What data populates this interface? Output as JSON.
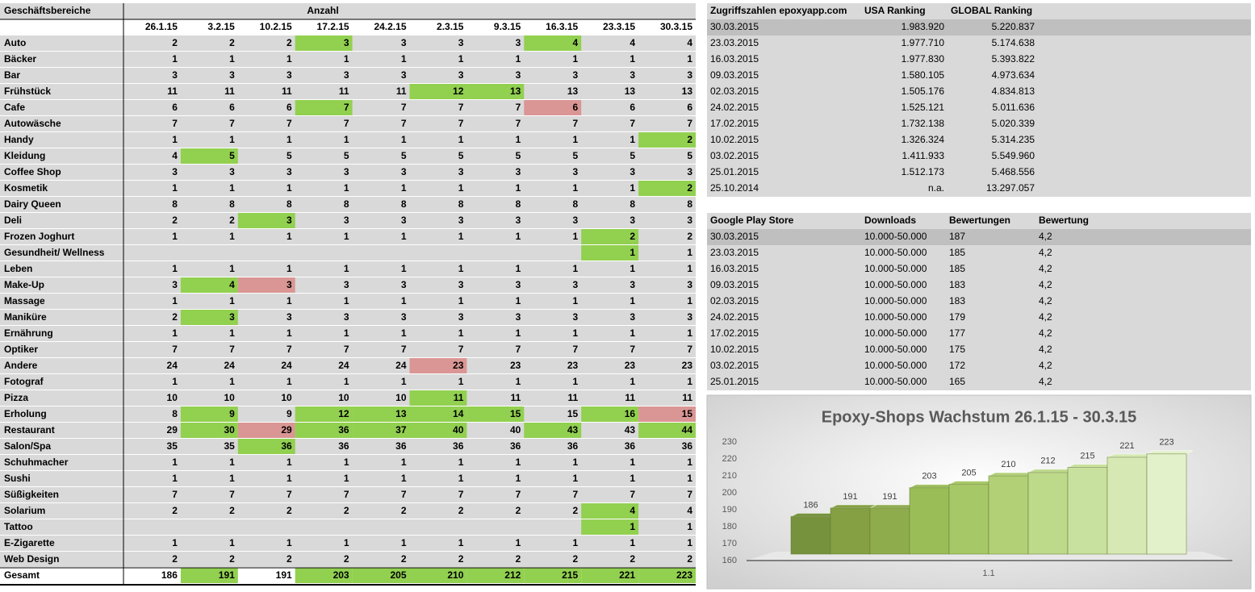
{
  "table": {
    "headers": [
      "Geschäftsbereiche",
      "Anzahl"
    ],
    "dates": [
      "26.1.15",
      "3.2.15",
      "10.2.15",
      "17.2.15",
      "24.2.15",
      "2.3.15",
      "9.3.15",
      "16.3.15",
      "23.3.15",
      "30.3.15"
    ],
    "rows": [
      {
        "name": "Auto",
        "values": [
          2,
          2,
          2,
          3,
          3,
          3,
          3,
          4,
          4,
          4
        ],
        "fills": [
          null,
          null,
          null,
          "#92d050",
          null,
          null,
          null,
          "#92d050",
          null,
          null
        ]
      },
      {
        "name": "Bäcker",
        "values": [
          1,
          1,
          1,
          1,
          1,
          1,
          1,
          1,
          1,
          1
        ],
        "fills": [
          null,
          null,
          null,
          null,
          null,
          null,
          null,
          null,
          null,
          null
        ]
      },
      {
        "name": "Bar",
        "values": [
          3,
          3,
          3,
          3,
          3,
          3,
          3,
          3,
          3,
          3
        ],
        "fills": [
          null,
          null,
          null,
          null,
          null,
          null,
          null,
          null,
          null,
          null
        ]
      },
      {
        "name": "Frühstück",
        "values": [
          11,
          11,
          11,
          11,
          11,
          12,
          13,
          13,
          13,
          13
        ],
        "fills": [
          null,
          null,
          null,
          null,
          null,
          "#92d050",
          "#92d050",
          null,
          null,
          null
        ]
      },
      {
        "name": "Cafe",
        "values": [
          6,
          6,
          6,
          7,
          7,
          7,
          7,
          6,
          6,
          6
        ],
        "fills": [
          null,
          null,
          null,
          "#92d050",
          null,
          null,
          null,
          "#da9694",
          null,
          null
        ]
      },
      {
        "name": "Autowäsche",
        "values": [
          7,
          7,
          7,
          7,
          7,
          7,
          7,
          7,
          7,
          7
        ],
        "fills": [
          null,
          null,
          null,
          null,
          null,
          null,
          null,
          null,
          null,
          null
        ]
      },
      {
        "name": "Handy",
        "values": [
          1,
          1,
          1,
          1,
          1,
          1,
          1,
          1,
          1,
          2
        ],
        "fills": [
          null,
          null,
          null,
          null,
          null,
          null,
          null,
          null,
          null,
          "#92d050"
        ]
      },
      {
        "name": "Kleidung",
        "values": [
          4,
          5,
          5,
          5,
          5,
          5,
          5,
          5,
          5,
          5
        ],
        "fills": [
          null,
          "#92d050",
          null,
          null,
          null,
          null,
          null,
          null,
          null,
          null
        ]
      },
      {
        "name": "Coffee Shop",
        "values": [
          3,
          3,
          3,
          3,
          3,
          3,
          3,
          3,
          3,
          3
        ],
        "fills": [
          null,
          null,
          null,
          null,
          null,
          null,
          null,
          null,
          null,
          null
        ]
      },
      {
        "name": "Kosmetik",
        "values": [
          1,
          1,
          1,
          1,
          1,
          1,
          1,
          1,
          1,
          2
        ],
        "fills": [
          null,
          null,
          null,
          null,
          null,
          null,
          null,
          null,
          null,
          "#92d050"
        ]
      },
      {
        "name": "Dairy Queen",
        "values": [
          8,
          8,
          8,
          8,
          8,
          8,
          8,
          8,
          8,
          8
        ],
        "fills": [
          null,
          null,
          null,
          null,
          null,
          null,
          null,
          null,
          null,
          null
        ]
      },
      {
        "name": "Deli",
        "values": [
          2,
          2,
          3,
          3,
          3,
          3,
          3,
          3,
          3,
          3
        ],
        "fills": [
          null,
          null,
          "#92d050",
          null,
          null,
          null,
          null,
          null,
          null,
          null
        ]
      },
      {
        "name": "Frozen Joghurt",
        "values": [
          1,
          1,
          1,
          1,
          1,
          1,
          1,
          1,
          2,
          2
        ],
        "fills": [
          null,
          null,
          null,
          null,
          null,
          null,
          null,
          null,
          "#92d050",
          null
        ]
      },
      {
        "name": "Gesundheit/ Wellness",
        "values": [
          null,
          null,
          null,
          null,
          null,
          null,
          null,
          null,
          1,
          1
        ],
        "fills": [
          null,
          null,
          null,
          null,
          null,
          null,
          null,
          null,
          "#92d050",
          null
        ]
      },
      {
        "name": "Leben",
        "values": [
          1,
          1,
          1,
          1,
          1,
          1,
          1,
          1,
          1,
          1
        ],
        "fills": [
          null,
          null,
          null,
          null,
          null,
          null,
          null,
          null,
          null,
          null
        ]
      },
      {
        "name": "Make-Up",
        "values": [
          3,
          4,
          3,
          3,
          3,
          3,
          3,
          3,
          3,
          3
        ],
        "fills": [
          null,
          "#92d050",
          "#da9694",
          null,
          null,
          null,
          null,
          null,
          null,
          null
        ]
      },
      {
        "name": "Massage",
        "values": [
          1,
          1,
          1,
          1,
          1,
          1,
          1,
          1,
          1,
          1
        ],
        "fills": [
          null,
          null,
          null,
          null,
          null,
          null,
          null,
          null,
          null,
          null
        ]
      },
      {
        "name": "Maniküre",
        "values": [
          2,
          3,
          3,
          3,
          3,
          3,
          3,
          3,
          3,
          3
        ],
        "fills": [
          null,
          "#92d050",
          null,
          null,
          null,
          null,
          null,
          null,
          null,
          null
        ]
      },
      {
        "name": "Ernährung",
        "values": [
          1,
          1,
          1,
          1,
          1,
          1,
          1,
          1,
          1,
          1
        ],
        "fills": [
          null,
          null,
          null,
          null,
          null,
          null,
          null,
          null,
          null,
          null
        ]
      },
      {
        "name": "Optiker",
        "values": [
          7,
          7,
          7,
          7,
          7,
          7,
          7,
          7,
          7,
          7
        ],
        "fills": [
          null,
          null,
          null,
          null,
          null,
          null,
          null,
          null,
          null,
          null
        ]
      },
      {
        "name": "Andere",
        "values": [
          24,
          24,
          24,
          24,
          24,
          23,
          23,
          23,
          23,
          23
        ],
        "fills": [
          null,
          null,
          null,
          null,
          null,
          "#da9694",
          null,
          null,
          null,
          null
        ]
      },
      {
        "name": "Fotograf",
        "values": [
          1,
          1,
          1,
          1,
          1,
          1,
          1,
          1,
          1,
          1
        ],
        "fills": [
          null,
          null,
          null,
          null,
          null,
          null,
          null,
          null,
          null,
          null
        ]
      },
      {
        "name": "Pizza",
        "values": [
          10,
          10,
          10,
          10,
          10,
          11,
          11,
          11,
          11,
          11
        ],
        "fills": [
          null,
          null,
          null,
          null,
          null,
          "#92d050",
          null,
          null,
          null,
          null
        ]
      },
      {
        "name": "Erholung",
        "values": [
          8,
          9,
          9,
          12,
          13,
          14,
          15,
          15,
          16,
          15
        ],
        "fills": [
          null,
          "#92d050",
          null,
          "#92d050",
          "#92d050",
          "#92d050",
          "#92d050",
          null,
          "#92d050",
          "#da9694"
        ]
      },
      {
        "name": "Restaurant",
        "values": [
          29,
          30,
          29,
          36,
          37,
          40,
          40,
          43,
          43,
          44
        ],
        "fills": [
          null,
          "#92d050",
          "#da9694",
          "#92d050",
          "#92d050",
          "#92d050",
          null,
          "#92d050",
          null,
          "#92d050"
        ]
      },
      {
        "name": "Salon/Spa",
        "values": [
          35,
          35,
          36,
          36,
          36,
          36,
          36,
          36,
          36,
          36
        ],
        "fills": [
          null,
          null,
          "#92d050",
          null,
          null,
          null,
          null,
          null,
          null,
          null
        ]
      },
      {
        "name": "Schuhmacher",
        "values": [
          1,
          1,
          1,
          1,
          1,
          1,
          1,
          1,
          1,
          1
        ],
        "fills": [
          null,
          null,
          null,
          null,
          null,
          null,
          null,
          null,
          null,
          null
        ]
      },
      {
        "name": "Sushi",
        "values": [
          1,
          1,
          1,
          1,
          1,
          1,
          1,
          1,
          1,
          1
        ],
        "fills": [
          null,
          null,
          null,
          null,
          null,
          null,
          null,
          null,
          null,
          null
        ]
      },
      {
        "name": "Süßigkeiten",
        "values": [
          7,
          7,
          7,
          7,
          7,
          7,
          7,
          7,
          7,
          7
        ],
        "fills": [
          null,
          null,
          null,
          null,
          null,
          null,
          null,
          null,
          null,
          null
        ]
      },
      {
        "name": "Solarium",
        "values": [
          2,
          2,
          2,
          2,
          2,
          2,
          2,
          2,
          4,
          4
        ],
        "fills": [
          null,
          null,
          null,
          null,
          null,
          null,
          null,
          null,
          "#92d050",
          null
        ]
      },
      {
        "name": "Tattoo",
        "values": [
          null,
          null,
          null,
          null,
          null,
          null,
          null,
          null,
          1,
          1
        ],
        "fills": [
          null,
          null,
          null,
          null,
          null,
          null,
          null,
          null,
          "#92d050",
          null
        ]
      },
      {
        "name": "E-Zigarette",
        "values": [
          1,
          1,
          1,
          1,
          1,
          1,
          1,
          1,
          1,
          1
        ],
        "fills": [
          null,
          null,
          null,
          null,
          null,
          null,
          null,
          null,
          null,
          null
        ]
      },
      {
        "name": "Web Design",
        "values": [
          2,
          2,
          2,
          2,
          2,
          2,
          2,
          2,
          2,
          2
        ],
        "fills": [
          null,
          null,
          null,
          null,
          null,
          null,
          null,
          null,
          null,
          null
        ]
      }
    ],
    "total": {
      "name": "Gesamt",
      "values": [
        186,
        191,
        191,
        203,
        205,
        210,
        212,
        215,
        221,
        223
      ],
      "fills": [
        null,
        "#92d050",
        null,
        "#92d050",
        "#92d050",
        "#92d050",
        "#92d050",
        "#92d050",
        "#92d050",
        "#92d050"
      ]
    }
  },
  "usa_table": {
    "headers": [
      "Zugriffszahlen epoxyapp.com",
      "USA Ranking",
      "GLOBAL Ranking"
    ],
    "rows": [
      [
        "30.03.2015",
        "1.983.920",
        "5.220.837"
      ],
      [
        "23.03.2015",
        "1.977.710",
        "5.174.638"
      ],
      [
        "16.03.2015",
        "1.977.830",
        "5.393.822"
      ],
      [
        "09.03.2015",
        "1.580.105",
        "4.973.634"
      ],
      [
        "02.03.2015",
        "1.505.176",
        "4.834.813"
      ],
      [
        "24.02.2015",
        "1.525.121",
        "5.011.636"
      ],
      [
        "17.02.2015",
        "1.732.138",
        "5.020.339"
      ],
      [
        "10.02.2015",
        "1.326.324",
        "5.314.235"
      ],
      [
        "03.02.2015",
        "1.411.933",
        "5.549.960"
      ],
      [
        "25.01.2015",
        "1.512.173",
        "5.468.556"
      ],
      [
        "25.10.2014",
        "n.a.",
        "13.297.057"
      ]
    ]
  },
  "play_table": {
    "headers": [
      "Google Play Store",
      "Downloads",
      "Bewertungen",
      "Bewertung"
    ],
    "rows": [
      [
        "30.03.2015",
        "10.000-50.000",
        "187",
        "4,2"
      ],
      [
        "23.03.2015",
        "10.000-50.000",
        "185",
        "4,2"
      ],
      [
        "16.03.2015",
        "10.000-50.000",
        "185",
        "4,2"
      ],
      [
        "09.03.2015",
        "10.000-50.000",
        "183",
        "4,2"
      ],
      [
        "02.03.2015",
        "10.000-50.000",
        "183",
        "4,2"
      ],
      [
        "24.02.2015",
        "10.000-50.000",
        "179",
        "4,2"
      ],
      [
        "17.02.2015",
        "10.000-50.000",
        "177",
        "4,2"
      ],
      [
        "10.02.2015",
        "10.000-50.000",
        "175",
        "4,2"
      ],
      [
        "03.02.2015",
        "10.000-50.000",
        "172",
        "4,2"
      ],
      [
        "25.01.2015",
        "10.000-50.000",
        "165",
        "4,2"
      ]
    ]
  },
  "chart_data": {
    "type": "bar",
    "title": "Epoxy-Shops Wachstum 26.1.15 - 30.3.15",
    "x_label": "1.1",
    "values": [
      186,
      191,
      191,
      203,
      205,
      210,
      212,
      215,
      221,
      223
    ],
    "colors": [
      "#76923c",
      "#84a043",
      "#8fac4c",
      "#9bbd57",
      "#a7c866",
      "#b2d177",
      "#bdd98a",
      "#c9e19e",
      "#d6e9b4",
      "#e3f1cb"
    ],
    "ylim": [
      160,
      230
    ],
    "yticks": [
      160,
      170,
      180,
      190,
      200,
      210,
      220,
      230
    ],
    "grid": false
  }
}
